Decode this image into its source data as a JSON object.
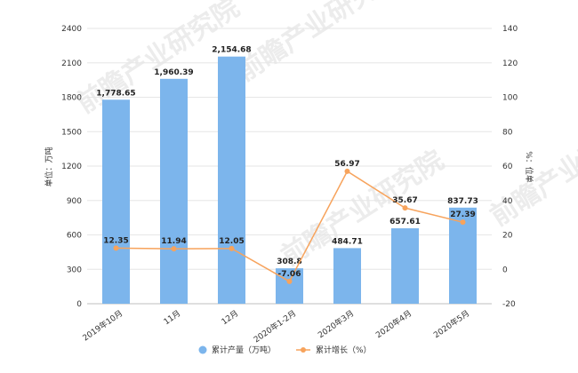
{
  "chart_data": {
    "type": "bar+line",
    "categories": [
      "2019年10月",
      "11月",
      "12月",
      "2020年1-2月",
      "2020年3月",
      "2020年4月",
      "2020年5月"
    ],
    "series": [
      {
        "name": "累计产量（万吨）",
        "type": "bar",
        "axis": "left",
        "color": "#7cb5ec",
        "values": [
          1778.65,
          1960.39,
          2154.68,
          308.8,
          484.71,
          657.61,
          837.73
        ],
        "labels": [
          "1,778.65",
          "1,960.39",
          "2,154.68",
          "308.8",
          "484.71",
          "657.61",
          "837.73"
        ]
      },
      {
        "name": "累计增长（%）",
        "type": "line",
        "axis": "right",
        "color": "#f7a35c",
        "values": [
          12.35,
          11.94,
          12.05,
          -7.06,
          56.97,
          35.67,
          27.39
        ],
        "labels": [
          "12.35",
          "11.94",
          "12.05",
          "-7.06",
          "56.97",
          "35.67",
          "27.39"
        ]
      }
    ],
    "y_left": {
      "label": "单位：万吨",
      "range": [
        0,
        2400
      ],
      "ticks": [
        0,
        300,
        600,
        900,
        1200,
        1500,
        1800,
        2100,
        2400
      ]
    },
    "y_right": {
      "label": "%：位单",
      "range": [
        -20,
        140
      ],
      "ticks": [
        -20,
        0,
        20,
        40,
        60,
        80,
        100,
        120,
        140
      ]
    },
    "grid": true,
    "legend_position": "bottom-center"
  },
  "watermark": "前瞻产业研究院"
}
